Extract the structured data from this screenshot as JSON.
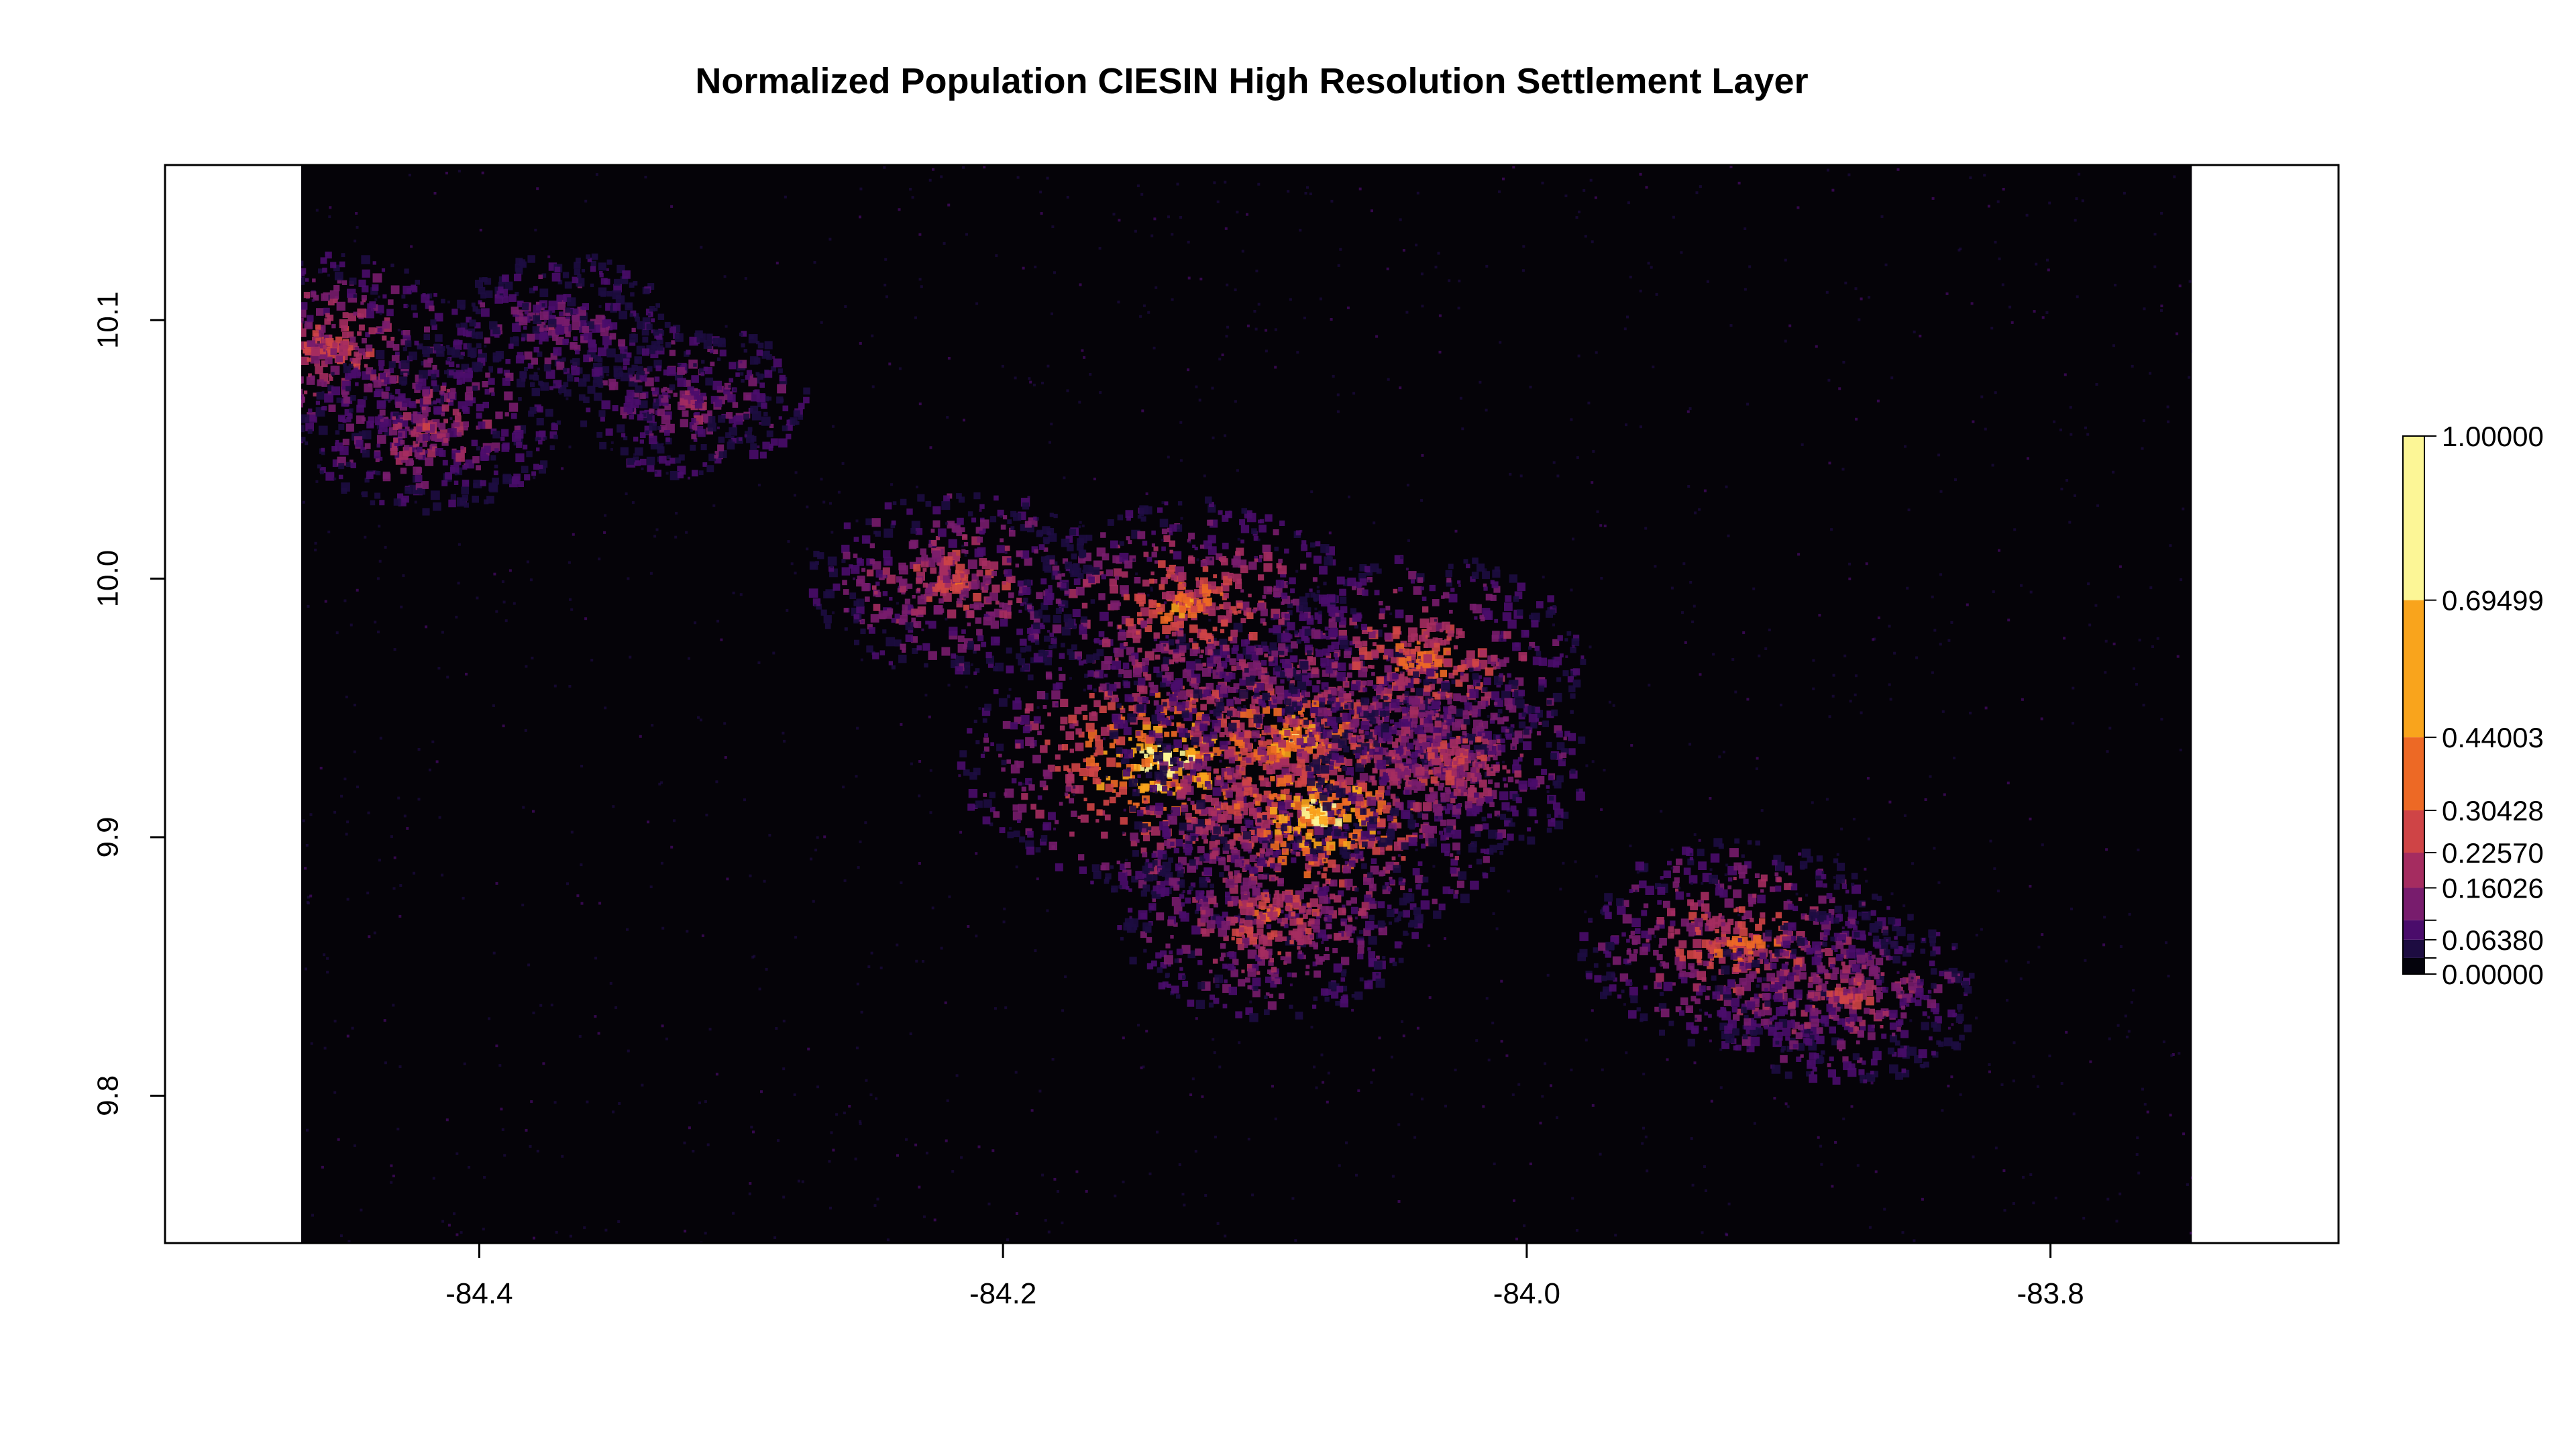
{
  "title": "Normalized Population  CIESIN High Resolution Settlement Layer",
  "map": {
    "x_ticks": [
      {
        "value": -84.4,
        "label": "-84.4"
      },
      {
        "value": -84.2,
        "label": "-84.2"
      },
      {
        "value": -84.0,
        "label": "-84.0"
      },
      {
        "value": -83.8,
        "label": "-83.8"
      }
    ],
    "y_ticks": [
      {
        "value": 9.8,
        "label": "9.8"
      },
      {
        "value": 9.9,
        "label": "9.9"
      },
      {
        "value": 10.0,
        "label": "10.0"
      },
      {
        "value": 10.1,
        "label": "10.1"
      }
    ],
    "xlim": [
      -84.52,
      -83.69
    ],
    "ylim": [
      9.743,
      10.16
    ],
    "raster_lon_range": [
      -84.468,
      -83.746
    ],
    "background_color": "#050308",
    "hotspots": [
      {
        "lon": -84.14,
        "lat": 9.93,
        "intensity": 0.85
      },
      {
        "lon": -84.09,
        "lat": 9.94,
        "intensity": 0.7
      },
      {
        "lon": -84.08,
        "lat": 9.91,
        "intensity": 0.8
      },
      {
        "lon": -84.04,
        "lat": 9.97,
        "intensity": 0.55
      },
      {
        "lon": -84.13,
        "lat": 9.99,
        "intensity": 0.6
      },
      {
        "lon": -84.22,
        "lat": 10.0,
        "intensity": 0.45
      },
      {
        "lon": -84.03,
        "lat": 9.93,
        "intensity": 0.45
      },
      {
        "lon": -83.92,
        "lat": 9.86,
        "intensity": 0.55
      },
      {
        "lon": -83.88,
        "lat": 9.84,
        "intensity": 0.4
      },
      {
        "lon": -84.46,
        "lat": 10.09,
        "intensity": 0.45
      },
      {
        "lon": -84.42,
        "lat": 10.06,
        "intensity": 0.35
      },
      {
        "lon": -84.1,
        "lat": 9.87,
        "intensity": 0.5
      },
      {
        "lon": -84.32,
        "lat": 10.07,
        "intensity": 0.25
      },
      {
        "lon": -84.37,
        "lat": 10.1,
        "intensity": 0.2
      }
    ]
  },
  "legend": {
    "breaks": [
      {
        "value": 1.0,
        "label": "1.00000"
      },
      {
        "value": 0.69499,
        "label": "0.69499"
      },
      {
        "value": 0.44003,
        "label": "0.44003"
      },
      {
        "value": 0.30428,
        "label": "0.30428"
      },
      {
        "value": 0.2257,
        "label": "0.22570"
      },
      {
        "value": 0.16026,
        "label": "0.16026"
      },
      {
        "value": 0.1,
        "label": ""
      },
      {
        "value": 0.0638,
        "label": "0.06380"
      },
      {
        "value": 0.03,
        "label": ""
      },
      {
        "value": 0.0,
        "label": "0.00000"
      }
    ],
    "colors": [
      "#04030c",
      "#1d0c41",
      "#4a0c6b",
      "#781c6d",
      "#a52c60",
      "#cf4446",
      "#ed6925",
      "#f9a41c",
      "#fcf696"
    ]
  }
}
